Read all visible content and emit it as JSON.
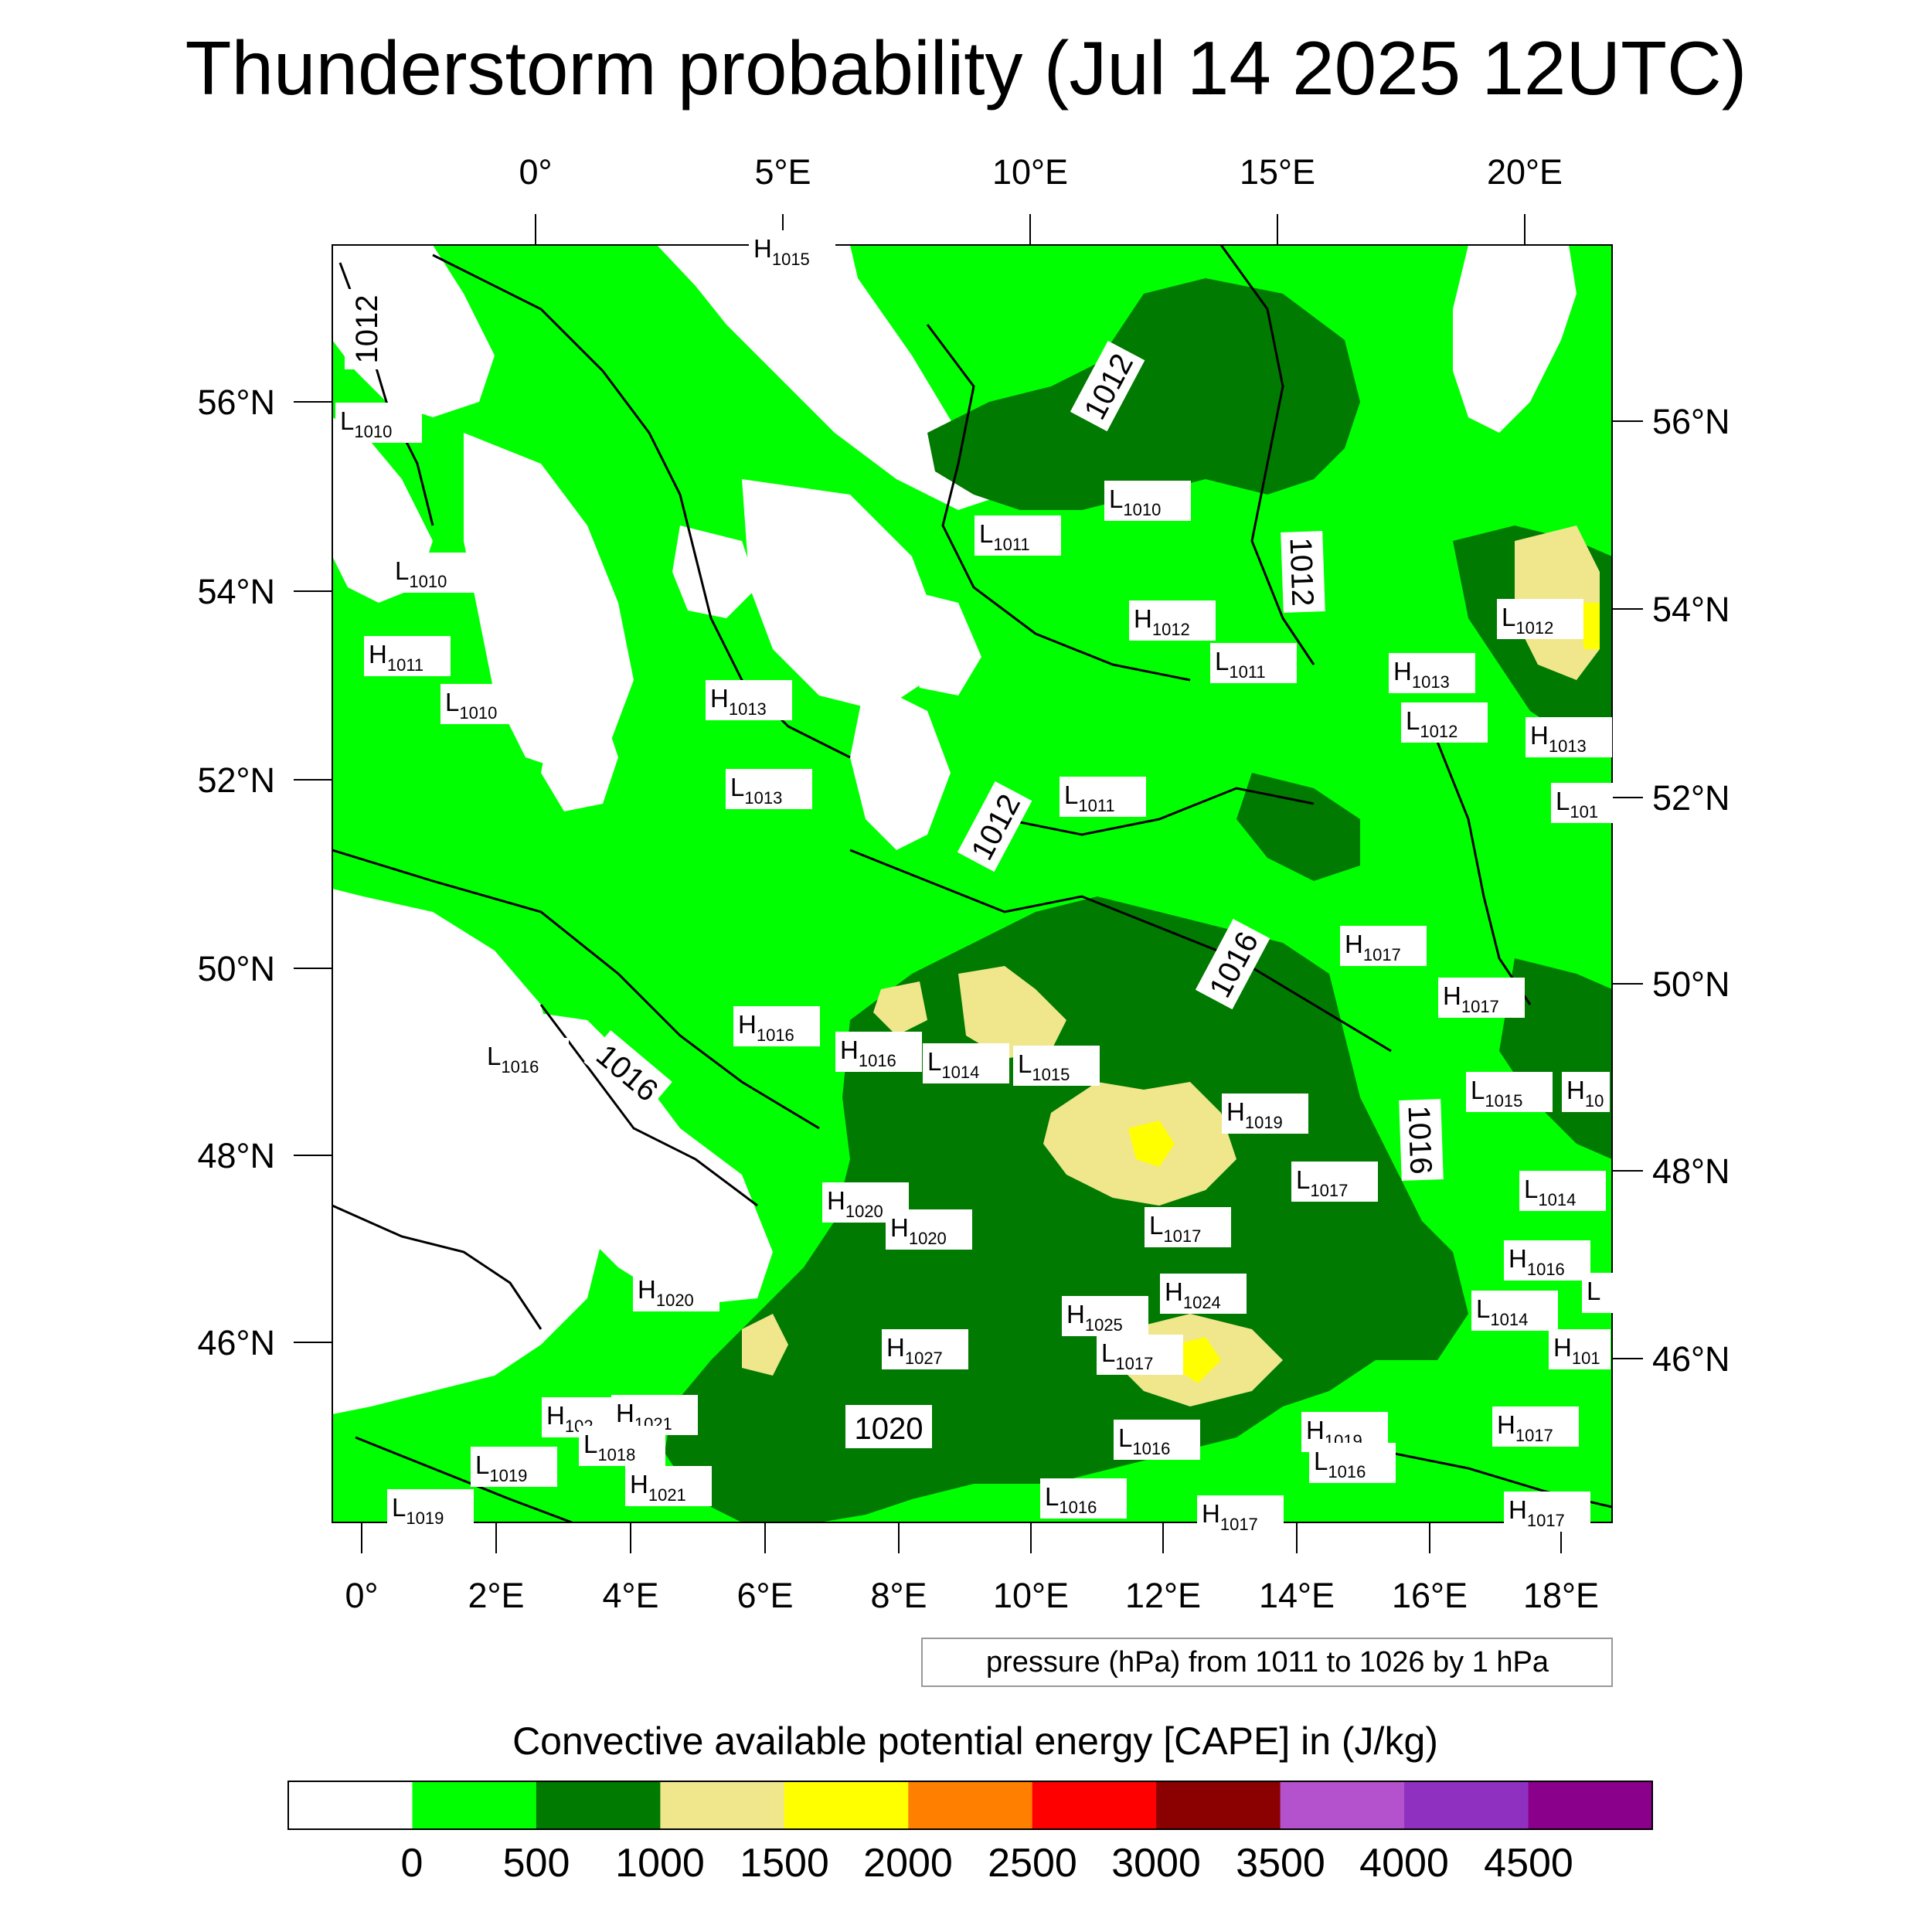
{
  "title": "Thunderstorm probability (Jul 14 2025 12UTC)",
  "top_lon_labels": [
    "0°",
    "5°E",
    "10°E",
    "15°E",
    "20°E"
  ],
  "bottom_lon_labels": [
    "0°",
    "2°E",
    "4°E",
    "6°E",
    "8°E",
    "10°E",
    "12°E",
    "14°E",
    "16°E",
    "18°E"
  ],
  "left_lat_labels": [
    "56°N",
    "54°N",
    "52°N",
    "50°N",
    "48°N",
    "46°N"
  ],
  "right_lat_labels": [
    "56°N",
    "54°N",
    "52°N",
    "50°N",
    "48°N",
    "46°N"
  ],
  "pressure_note": "pressure (hPa) from 1011 to 1026 by 1 hPa",
  "colorbar": {
    "title": "Convective available potential energy [CAPE] in (J/kg)",
    "colors": [
      "#ffffff",
      "#00ff00",
      "#007a00",
      "#f0e68c",
      "#ffff00",
      "#ff8000",
      "#ff0000",
      "#8b0000",
      "#b452cd",
      "#9030c0",
      "#8b008b"
    ],
    "ticks": [
      "0",
      "500",
      "1000",
      "1500",
      "2000",
      "2500",
      "3000",
      "3500",
      "4000",
      "4500"
    ]
  },
  "contour_labels": [
    "1012",
    "1012",
    "1012",
    "1012",
    "1016",
    "1016",
    "1016",
    "1020"
  ],
  "pressure_centers": [
    {
      "t": "H",
      "v": "1015"
    },
    {
      "t": "L",
      "v": "1010"
    },
    {
      "t": "L",
      "v": "1010"
    },
    {
      "t": "H",
      "v": "1011"
    },
    {
      "t": "L",
      "v": "1010"
    },
    {
      "t": "L",
      "v": "1010"
    },
    {
      "t": "L",
      "v": "1011"
    },
    {
      "t": "H",
      "v": "1012"
    },
    {
      "t": "L",
      "v": "1011"
    },
    {
      "t": "H",
      "v": "1013"
    },
    {
      "t": "L",
      "v": "1012"
    },
    {
      "t": "H",
      "v": "1013"
    },
    {
      "t": "L",
      "v": "1012"
    },
    {
      "t": "H",
      "v": "1013"
    },
    {
      "t": "L",
      "v": "1013"
    },
    {
      "t": "L",
      "v": "1011"
    },
    {
      "t": "L",
      "v": "101"
    },
    {
      "t": "H",
      "v": "1017"
    },
    {
      "t": "H",
      "v": "1017"
    },
    {
      "t": "H",
      "v": "1016"
    },
    {
      "t": "H",
      "v": "1016"
    },
    {
      "t": "L",
      "v": "1014"
    },
    {
      "t": "L",
      "v": "1015"
    },
    {
      "t": "L",
      "v": "1016"
    },
    {
      "t": "H",
      "v": "1019"
    },
    {
      "t": "L",
      "v": "1015"
    },
    {
      "t": "H",
      "v": "10"
    },
    {
      "t": "L",
      "v": "1017"
    },
    {
      "t": "L",
      "v": "1014"
    },
    {
      "t": "H",
      "v": "1020"
    },
    {
      "t": "H",
      "v": "1020"
    },
    {
      "t": "L",
      "v": "1017"
    },
    {
      "t": "H",
      "v": "1016"
    },
    {
      "t": "H",
      "v": "1020"
    },
    {
      "t": "H",
      "v": "1024"
    },
    {
      "t": "H",
      "v": "1025"
    },
    {
      "t": "L",
      "v": "1014"
    },
    {
      "t": "H",
      "v": "1027"
    },
    {
      "t": "L",
      "v": "1017"
    },
    {
      "t": "H",
      "v": "101"
    },
    {
      "t": "H",
      "v": "102"
    },
    {
      "t": "H",
      "v": "1021"
    },
    {
      "t": "L",
      "v": "1018"
    },
    {
      "t": "L",
      "v": "1019"
    },
    {
      "t": "H",
      "v": "1021"
    },
    {
      "t": "L",
      "v": "1016"
    },
    {
      "t": "H",
      "v": "1019"
    },
    {
      "t": "L",
      "v": "1016"
    },
    {
      "t": "H",
      "v": "1017"
    },
    {
      "t": "L",
      "v": "1016"
    },
    {
      "t": "L",
      "v": "1019"
    },
    {
      "t": "H",
      "v": "1017"
    },
    {
      "t": "H",
      "v": "1017"
    },
    {
      "t": "L",
      "v": ""
    }
  ]
}
